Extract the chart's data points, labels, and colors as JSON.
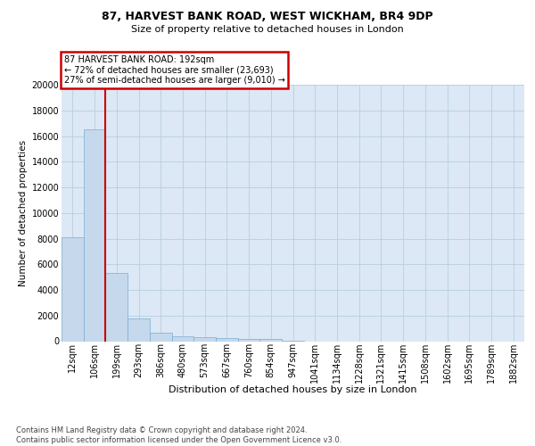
{
  "title": "87, HARVEST BANK ROAD, WEST WICKHAM, BR4 9DP",
  "subtitle": "Size of property relative to detached houses in London",
  "xlabel": "Distribution of detached houses by size in London",
  "ylabel": "Number of detached properties",
  "footer_line1": "Contains HM Land Registry data © Crown copyright and database right 2024.",
  "footer_line2": "Contains public sector information licensed under the Open Government Licence v3.0.",
  "annotation_line1": "87 HARVEST BANK ROAD: 192sqm",
  "annotation_line2": "← 72% of detached houses are smaller (23,693)",
  "annotation_line3": "27% of semi-detached houses are larger (9,010) →",
  "bar_color": "#c5d8ec",
  "bar_edge_color": "#7aadd4",
  "vline_color": "#cc0000",
  "annotation_box_edge_color": "#cc0000",
  "background_color": "#ffffff",
  "plot_bg_color": "#dce8f5",
  "grid_color": "#b8cede",
  "categories": [
    "12sqm",
    "106sqm",
    "199sqm",
    "293sqm",
    "386sqm",
    "480sqm",
    "573sqm",
    "667sqm",
    "760sqm",
    "854sqm",
    "947sqm",
    "1041sqm",
    "1134sqm",
    "1228sqm",
    "1321sqm",
    "1415sqm",
    "1508sqm",
    "1602sqm",
    "1695sqm",
    "1789sqm",
    "1882sqm"
  ],
  "values": [
    8100,
    16500,
    5300,
    1750,
    650,
    375,
    280,
    230,
    200,
    175,
    50,
    0,
    0,
    0,
    0,
    0,
    0,
    0,
    0,
    0,
    0
  ],
  "ylim": [
    0,
    20000
  ],
  "yticks": [
    0,
    2000,
    4000,
    6000,
    8000,
    10000,
    12000,
    14000,
    16000,
    18000,
    20000
  ],
  "vline_x": 1.5,
  "title_fontsize": 9,
  "subtitle_fontsize": 8,
  "ylabel_fontsize": 7.5,
  "xlabel_fontsize": 8,
  "tick_fontsize": 7,
  "footer_fontsize": 6,
  "annotation_fontsize": 7
}
